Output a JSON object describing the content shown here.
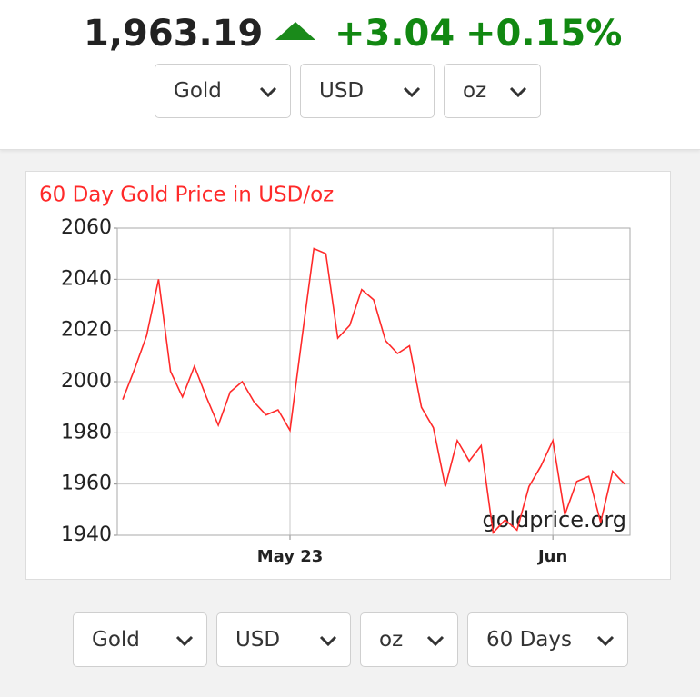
{
  "header": {
    "price": "1,963.19",
    "change": "+3.04",
    "change_percent": "+0.15%"
  },
  "top_selectors": [
    "Gold",
    "USD",
    "oz"
  ],
  "bottom_selectors": [
    "Gold",
    "USD",
    "oz",
    "60 Days"
  ],
  "chart_data": {
    "type": "line",
    "title": "60 Day Gold Price in USD/oz",
    "watermark": "goldprice.org",
    "categories": [
      null,
      null,
      null,
      null,
      null,
      null,
      null,
      null,
      null,
      null,
      null,
      null,
      null,
      null,
      "May 23",
      null,
      null,
      null,
      null,
      null,
      null,
      null,
      null,
      null,
      null,
      null,
      null,
      null,
      null,
      null,
      null,
      null,
      null,
      null,
      null,
      null,
      "Jun",
      null,
      null,
      null,
      null,
      null,
      null
    ],
    "series": [
      {
        "name": "Gold",
        "color": "#ff2a2a",
        "values": [
          1993,
          2005,
          2018,
          2040,
          2004,
          1994,
          2006,
          1994,
          1983,
          1996,
          2000,
          1992,
          1987,
          1989,
          1981,
          2017,
          2052,
          2050,
          2017,
          2022,
          2036,
          2032,
          2016,
          2011,
          2014,
          1990,
          1982,
          1959,
          1977,
          1969,
          1975,
          1941,
          1946,
          1942,
          1959,
          1967,
          1977,
          1948,
          1961,
          1963,
          1945,
          1965,
          1960
        ]
      }
    ],
    "ylim": [
      1940,
      2060
    ],
    "yticks": [
      1940,
      1960,
      1980,
      2000,
      2020,
      2040,
      2060
    ],
    "grid": true
  }
}
